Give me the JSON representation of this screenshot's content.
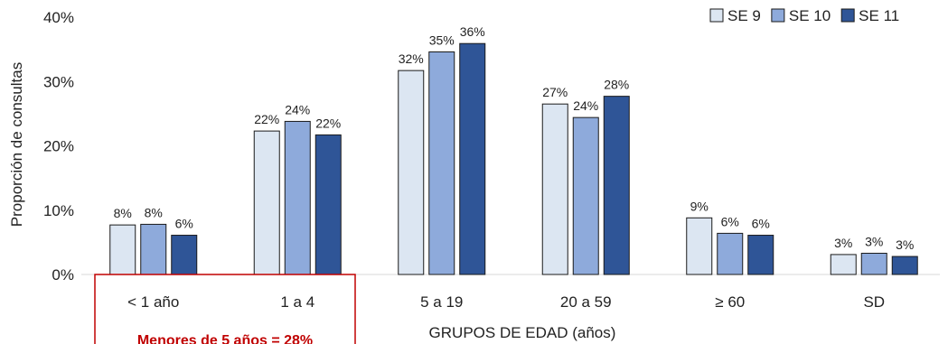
{
  "chart_data": {
    "type": "bar",
    "title": "",
    "xlabel": "GRUPOS DE EDAD (años)",
    "ylabel": "Proporción  de consultas",
    "ylim": [
      0,
      40
    ],
    "yticks": [
      "0%",
      "10%",
      "20%",
      "30%",
      "40%"
    ],
    "grid": false,
    "legend_position": "top-right",
    "categories": [
      "< 1 año",
      "1 a 4",
      "5 a 19",
      "20 a 59",
      "≥ 60",
      "SD"
    ],
    "series": [
      {
        "name": "SE 9",
        "color": "#dce6f2",
        "values": [
          7.7,
          22.3,
          31.7,
          26.5,
          8.8,
          3.1
        ],
        "labels": [
          "8%",
          "22%",
          "32%",
          "27%",
          "9%",
          "3%"
        ]
      },
      {
        "name": "SE 10",
        "color": "#8eaadb",
        "values": [
          7.8,
          23.8,
          34.6,
          24.4,
          6.4,
          3.3
        ],
        "labels": [
          "8%",
          "24%",
          "35%",
          "24%",
          "6%",
          "3%"
        ]
      },
      {
        "name": "SE 11",
        "color": "#2f5597",
        "values": [
          6.1,
          21.7,
          35.9,
          27.7,
          6.1,
          2.8
        ],
        "labels": [
          "6%",
          "22%",
          "36%",
          "28%",
          "6%",
          "3%"
        ]
      }
    ],
    "annotation": {
      "text": "Menores de 5 años = 28%",
      "color": "#c00000"
    }
  }
}
